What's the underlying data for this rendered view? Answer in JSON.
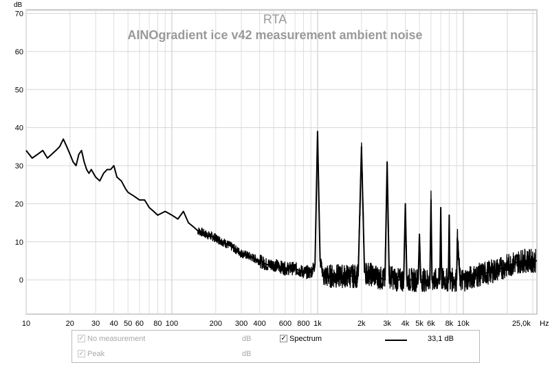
{
  "chart_data": {
    "type": "line",
    "title": "RTA",
    "subtitle": "AINOgradient ice v42 measurement ambient noise",
    "ylabel": "dB",
    "xlabel": "Hz",
    "x_scale": "log",
    "xlim": [
      10,
      32000
    ],
    "ylim": [
      -9,
      71
    ],
    "y_ticks": [
      0,
      10,
      20,
      30,
      40,
      50,
      60,
      70
    ],
    "x_ticks": [
      {
        "value": 10,
        "label": "10"
      },
      {
        "value": 20,
        "label": "20"
      },
      {
        "value": 30,
        "label": "30"
      },
      {
        "value": 40,
        "label": "40"
      },
      {
        "value": 50,
        "label": "50"
      },
      {
        "value": 60,
        "label": "60"
      },
      {
        "value": 80,
        "label": "80"
      },
      {
        "value": 100,
        "label": "100"
      },
      {
        "value": 200,
        "label": "200"
      },
      {
        "value": 300,
        "label": "300"
      },
      {
        "value": 400,
        "label": "400"
      },
      {
        "value": 600,
        "label": "600"
      },
      {
        "value": 800,
        "label": "800"
      },
      {
        "value": 1000,
        "label": "1k"
      },
      {
        "value": 2000,
        "label": "2k"
      },
      {
        "value": 3000,
        "label": "3k"
      },
      {
        "value": 4000,
        "label": "4k"
      },
      {
        "value": 5000,
        "label": "5k"
      },
      {
        "value": 6000,
        "label": "6k"
      },
      {
        "value": 8000,
        "label": "8k"
      },
      {
        "value": 10000,
        "label": "10k"
      },
      {
        "value": 25000,
        "label": "25,0k"
      }
    ],
    "grid": true,
    "series": [
      {
        "name": "Spectrum",
        "color": "#000000",
        "x": [
          10,
          11,
          12,
          13,
          14,
          15,
          16,
          17,
          18,
          19,
          20,
          21,
          22,
          23,
          24,
          25,
          26,
          27,
          28,
          30,
          32,
          34,
          36,
          38,
          40,
          42,
          45,
          48,
          50,
          55,
          60,
          65,
          70,
          75,
          80,
          90,
          100,
          110,
          120,
          130,
          140,
          150,
          170,
          200,
          250,
          300,
          350,
          400,
          450,
          500,
          600,
          700,
          800,
          900,
          960,
          1000,
          1040,
          1100,
          1300,
          1600,
          1900,
          2000,
          2100,
          2500,
          2900,
          3000,
          3100,
          3500,
          3900,
          4000,
          4100,
          4500,
          4900,
          5000,
          5100,
          5500,
          5900,
          6000,
          6100,
          6500,
          6900,
          7000,
          7100,
          7500,
          7900,
          8000,
          8100,
          8600,
          9000,
          9100,
          9500,
          10000,
          12000,
          15000,
          18000,
          21000,
          25000,
          32000
        ],
        "values": [
          34,
          32,
          33,
          34,
          32,
          33,
          34,
          35,
          37,
          35,
          33,
          31,
          30,
          33,
          34,
          31,
          29,
          28,
          29,
          27,
          26,
          28,
          29,
          29,
          30,
          27,
          26,
          24,
          23,
          22,
          21,
          21,
          19,
          18,
          17,
          18,
          17,
          16,
          18,
          15,
          14,
          13,
          12,
          11,
          9,
          7,
          6,
          5,
          4,
          4,
          3,
          3,
          2,
          2,
          4,
          39,
          5,
          1,
          1,
          1,
          1,
          35,
          2,
          1,
          0,
          31,
          1,
          0,
          0,
          20,
          0,
          0,
          0,
          12,
          0,
          0,
          0,
          21,
          0,
          0,
          0,
          19,
          0,
          0,
          0,
          17,
          0,
          0,
          0,
          11,
          0,
          0,
          1,
          2,
          3,
          4,
          5,
          5
        ]
      }
    ]
  },
  "legend": {
    "row1": {
      "name": "No measurement",
      "unit": "dB",
      "checked": true,
      "enabled": false
    },
    "row2": {
      "name": "Peak",
      "unit": "dB",
      "checked": true,
      "enabled": false
    },
    "spectrum": {
      "name": "Spectrum",
      "checked": true,
      "value": "33,1 dB"
    },
    "check_glyph": "✓"
  }
}
